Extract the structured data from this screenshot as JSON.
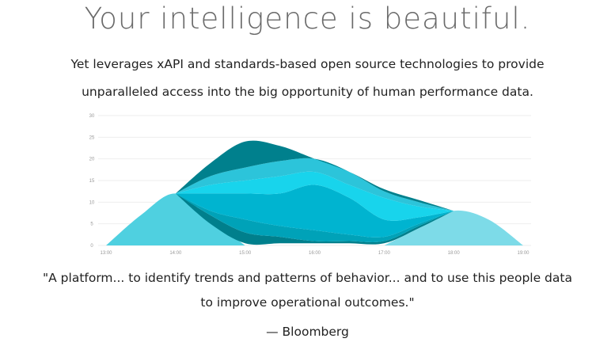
{
  "hero": {
    "title": "Your intelligence is beautiful.",
    "subtitle_line1": "Yet leverages xAPI and standards-based open source technologies to provide",
    "subtitle_line2": "unparalleled access into the big opportunity of human performance data."
  },
  "testimonial": {
    "quote_line1": "\"A platform... to identify trends and patterns of behavior... and to use this people data",
    "quote_line2": "to improve operational outcomes.\"",
    "attribution": "— Bloomberg"
  },
  "chart_data": {
    "type": "area",
    "x_ticks": [
      "13:00",
      "14:00",
      "15:00",
      "16:00",
      "17:00",
      "18:00",
      "19:00"
    ],
    "y_ticks": [
      0,
      5,
      10,
      15,
      20,
      25,
      30
    ],
    "ylim": [
      0,
      30
    ],
    "xlim": [
      13,
      19
    ],
    "grid": true,
    "legend": "none",
    "series": [
      {
        "x": [
          13,
          13.5,
          14,
          14.5,
          15
        ],
        "y0": [
          0,
          0,
          0,
          0,
          0
        ],
        "y1": [
          0,
          7,
          12,
          6,
          0
        ],
        "color": "#4fd0e0"
      },
      {
        "x": [
          17,
          17.5,
          18,
          18.5,
          19
        ],
        "y0": [
          0,
          0,
          0,
          0,
          0
        ],
        "y1": [
          0,
          4,
          8,
          6,
          0
        ],
        "color": "#7ddbe8"
      },
      {
        "x": [
          14,
          14.5,
          15,
          15.5,
          16,
          16.5,
          17,
          17.5,
          18
        ],
        "y0": [
          12,
          5,
          0.5,
          0.5,
          0.5,
          0.5,
          0.5,
          4,
          8
        ],
        "y1": [
          12,
          7,
          3,
          2,
          1,
          1,
          1,
          4.5,
          8
        ],
        "color": "#007f8c"
      },
      {
        "x": [
          14,
          14.5,
          15,
          15.5,
          16,
          16.5,
          17,
          17.5,
          18
        ],
        "y0": [
          12,
          7,
          3,
          2,
          1,
          1,
          1,
          4.5,
          8
        ],
        "y1": [
          12,
          8,
          6,
          4.5,
          3.5,
          2.5,
          2,
          5,
          8
        ],
        "color": "#00a2b8"
      },
      {
        "x": [
          14,
          14.5,
          15,
          15.5,
          16,
          16.5,
          17,
          17.5,
          18
        ],
        "y0": [
          12,
          8,
          6,
          4.5,
          3.5,
          2.5,
          2,
          5,
          8
        ],
        "y1": [
          12,
          12,
          12,
          12,
          14,
          11,
          6,
          6.5,
          8
        ],
        "color": "#00b4d0"
      },
      {
        "x": [
          14,
          14.5,
          15,
          15.5,
          16,
          16.5,
          17,
          17.5,
          18
        ],
        "y0": [
          12,
          12,
          12,
          12,
          14,
          11,
          6,
          6.5,
          8
        ],
        "y1": [
          12,
          14,
          15,
          16,
          17,
          14,
          11,
          9,
          8
        ],
        "color": "#18d4ec"
      },
      {
        "x": [
          14,
          14.5,
          15,
          15.5,
          16,
          16.5,
          17,
          17.5,
          18
        ],
        "y0": [
          12,
          14,
          15,
          16,
          17,
          14,
          11,
          9,
          8
        ],
        "y1": [
          12,
          16,
          18,
          19.5,
          20,
          17,
          12.5,
          10,
          8
        ],
        "color": "#2cc4da"
      },
      {
        "x": [
          14,
          14.5,
          15,
          15.5,
          16,
          16.5,
          17,
          17.5,
          18
        ],
        "y0": [
          12,
          16,
          18,
          19.5,
          20,
          17,
          12.5,
          10,
          8
        ],
        "y1": [
          12,
          19,
          24,
          23,
          20,
          17,
          13,
          10.5,
          8
        ],
        "color": "#00808d"
      }
    ]
  }
}
